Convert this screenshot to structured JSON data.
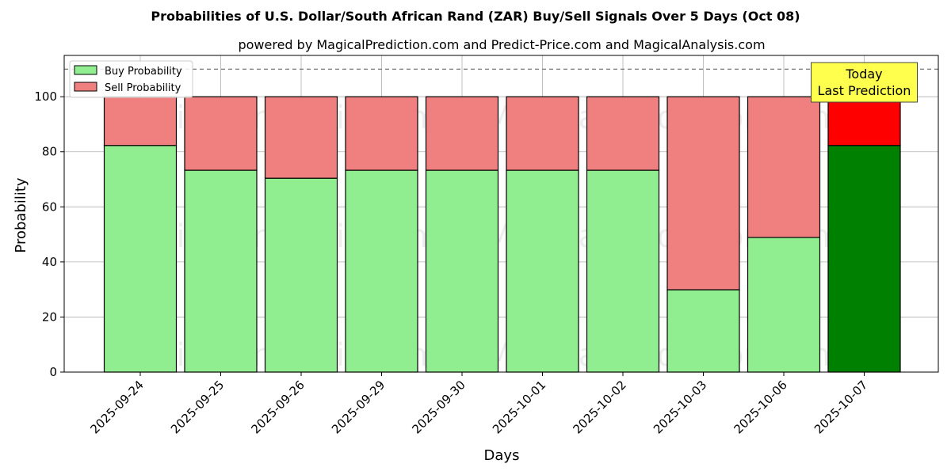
{
  "chart_data": {
    "type": "bar",
    "stacked": true,
    "title": "Probabilities of U.S. Dollar/South African Rand (ZAR) Buy/Sell Signals Over 5 Days (Oct 08)",
    "subtitle": "powered by MagicalPrediction.com and Predict-Price.com and MagicalAnalysis.com",
    "xlabel": "Days",
    "ylabel": "Probability",
    "ylim": [
      0,
      115
    ],
    "yticks": [
      0,
      20,
      40,
      60,
      80,
      100
    ],
    "grid": true,
    "legend_position": "top-left",
    "reference_line": 110,
    "categories": [
      "2025-09-24",
      "2025-09-25",
      "2025-09-26",
      "2025-09-29",
      "2025-09-30",
      "2025-10-01",
      "2025-10-02",
      "2025-10-03",
      "2025-10-06",
      "2025-10-07"
    ],
    "series": [
      {
        "name": "Buy Probability",
        "values": [
          82.3,
          73.3,
          70.4,
          73.3,
          73.3,
          73.3,
          73.3,
          29.9,
          48.9,
          82.3
        ],
        "color": "#90ee90",
        "highlight_color": "#008000"
      },
      {
        "name": "Sell Probability",
        "values": [
          17.7,
          26.7,
          29.6,
          26.7,
          26.7,
          26.7,
          26.7,
          70.1,
          51.1,
          17.7
        ],
        "color": "#f08080",
        "highlight_color": "#ff0000"
      }
    ],
    "highlight_index": 9,
    "annotation": {
      "line1": "Today",
      "line2": "Last Prediction",
      "background": "#ffff4d"
    },
    "watermarks": [
      "MagicalAnalysis.com",
      "MagicalPrediction.com"
    ]
  }
}
